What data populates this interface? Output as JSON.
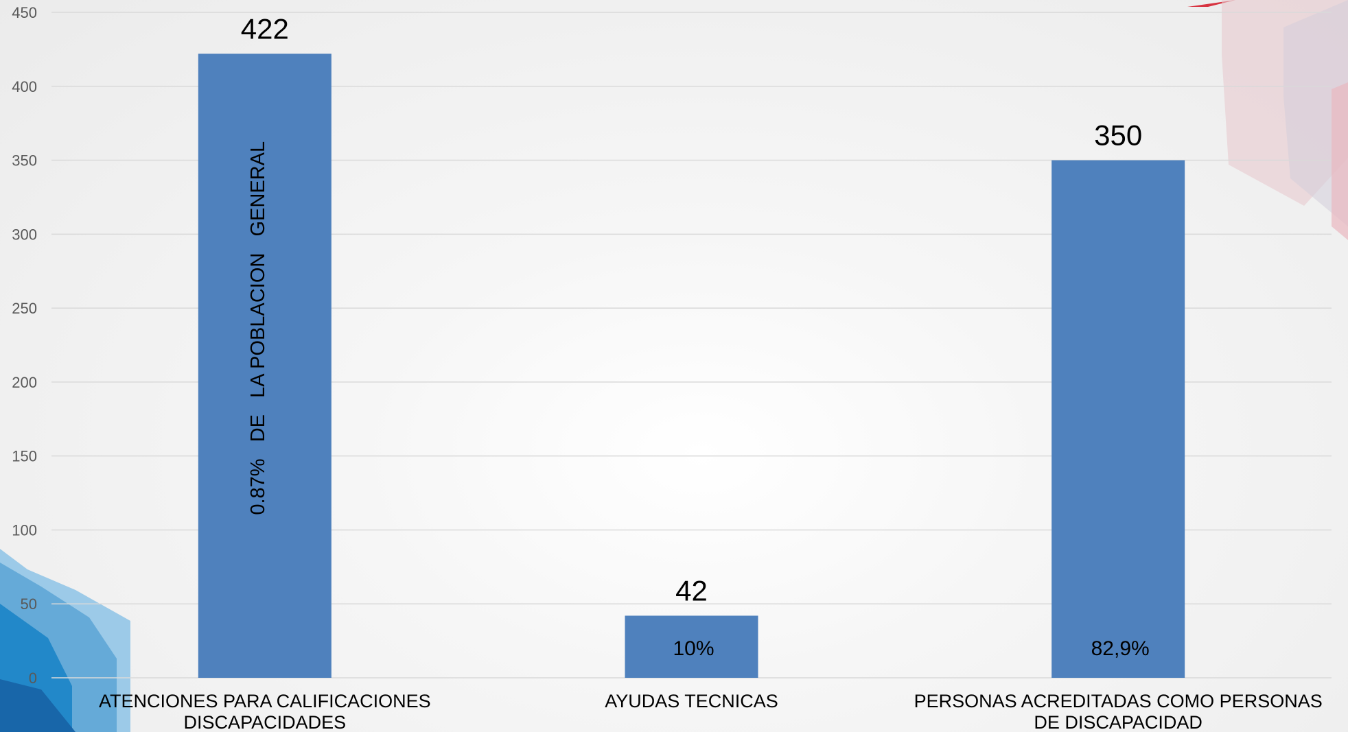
{
  "chart_data": {
    "type": "bar",
    "categories": [
      [
        "ATENCIONES PARA CALIFICACIONES",
        "DISCAPACIDADES"
      ],
      [
        "AYUDAS TECNICAS"
      ],
      [
        "PERSONAS ACREDITADAS COMO PERSONAS",
        "DE DISCAPACIDAD"
      ]
    ],
    "values": [
      422,
      42,
      350
    ],
    "data_labels": [
      "422",
      "42",
      "350"
    ],
    "bar_annotations": [
      {
        "text": "0.87%   DE   LA POBLACION   GENERAL",
        "orientation": "vertical"
      },
      {
        "text": "10%",
        "orientation": "horizontal"
      },
      {
        "text": "82,9%",
        "orientation": "horizontal"
      }
    ],
    "yticks": [
      0,
      50,
      100,
      150,
      200,
      250,
      300,
      350,
      400,
      450
    ],
    "ylim": [
      0,
      450
    ],
    "grid": true,
    "bar_color": "#4f81bd",
    "gridline_color": "#d9d9d9"
  }
}
